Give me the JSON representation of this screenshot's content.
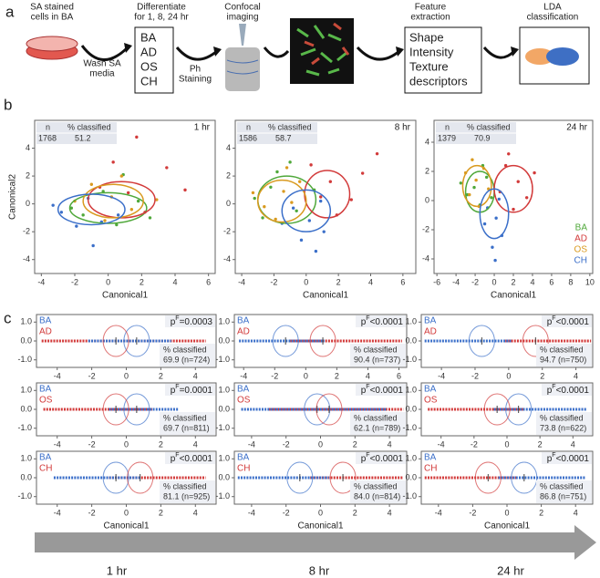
{
  "panel_a": {
    "label": "a",
    "dish_label": [
      "SA stained",
      "cells in BA"
    ],
    "wash": [
      "Wash SA",
      "media"
    ],
    "differentiate": [
      "Differentiate",
      "for 1, 8, 24 hr"
    ],
    "conditions": [
      "BA",
      "AD",
      "OS",
      "CH"
    ],
    "staining": [
      "Ph",
      "Staining"
    ],
    "imaging": [
      "Confocal",
      "imaging"
    ],
    "feature": [
      "Feature",
      "extraction"
    ],
    "descriptors": [
      "Shape",
      "Intensity",
      "Texture",
      "descriptors"
    ],
    "classification": [
      "LDA",
      "classification"
    ]
  },
  "panel_b_label": "b",
  "panel_c_label": "c",
  "timeline": {
    "labels": [
      "1 hr",
      "8 hr",
      "24 hr"
    ]
  },
  "chart_data": [
    {
      "type": "scatter",
      "time_label": "1 hr",
      "y_label": "Canonical2",
      "x_label": "Canonical1",
      "table": {
        "headers": [
          "n",
          "% classified"
        ],
        "values": [
          1768,
          51.2
        ]
      },
      "xlim": [
        -4.4,
        6.4
      ],
      "xticks": [
        -4,
        -2,
        0,
        2,
        4,
        6
      ],
      "ylim": [
        -5,
        6
      ],
      "yticks": [
        -4,
        -2,
        0,
        2,
        4
      ],
      "series": [
        {
          "color": "#4fa83a",
          "x": [
            -1.5,
            0.5,
            1.8,
            -0.3,
            2.5,
            -2.2,
            0.9
          ],
          "y": [
            -0.8,
            -1.5,
            0.2,
            0.9,
            -1.0,
            -0.3,
            2.1
          ],
          "ellipse": {
            "cx": 0,
            "cy": -0.3,
            "rx": 2.3,
            "ry": 1.1
          }
        },
        {
          "color": "#d23a3a",
          "x": [
            1.2,
            3.5,
            -0.5,
            2.2,
            4.6,
            0.3,
            1.7
          ],
          "y": [
            0.8,
            2.6,
            1.2,
            -0.6,
            1.0,
            3.0,
            4.8
          ],
          "ellipse": {
            "cx": 0.8,
            "cy": 0.3,
            "rx": 2,
            "ry": 1.3
          }
        },
        {
          "color": "#d99a1f",
          "x": [
            0.2,
            -1.0,
            1.4,
            2.9,
            -0.2,
            0.8,
            -2.0
          ],
          "y": [
            0.5,
            1.4,
            -0.4,
            0.3,
            -1.2,
            2.0,
            0.2
          ],
          "ellipse": {
            "cx": 0.3,
            "cy": 0.2,
            "rx": 1.8,
            "ry": 1.2
          }
        },
        {
          "color": "#3b6fc9",
          "x": [
            -2.8,
            -1.2,
            -0.4,
            -3.3,
            0.6,
            -1.9,
            -0.9
          ],
          "y": [
            -0.6,
            0.4,
            -1.3,
            -0.1,
            -0.8,
            -1.6,
            -3.0
          ],
          "ellipse": {
            "cx": -1,
            "cy": -0.4,
            "rx": 2,
            "ry": 1.1
          }
        }
      ]
    },
    {
      "type": "scatter",
      "time_label": "8 hr",
      "x_label": "Canonical1",
      "table": {
        "headers": [
          "n",
          "% classified"
        ],
        "values": [
          1586,
          58.7
        ]
      },
      "xlim": [
        -4.4,
        6.8
      ],
      "xticks": [
        -4,
        -2,
        0,
        2,
        4,
        6
      ],
      "ylim": [
        -5,
        6
      ],
      "yticks": [
        -4,
        -2,
        0,
        2,
        4
      ],
      "series": [
        {
          "color": "#4fa83a",
          "x": [
            -2.2,
            -0.6,
            -1.8,
            -3.2,
            0.5,
            -1.0,
            -2.7
          ],
          "y": [
            1.2,
            -0.5,
            2.3,
            0.4,
            1.0,
            3.0,
            -1.0
          ],
          "ellipse": {
            "cx": -1.2,
            "cy": 0.3,
            "rx": 1.8,
            "ry": 1.7
          }
        },
        {
          "color": "#d23a3a",
          "x": [
            1.5,
            2.8,
            0.3,
            1.9,
            3.5,
            0.9,
            4.4
          ],
          "y": [
            1.6,
            0.3,
            2.8,
            -0.8,
            2.2,
            0.5,
            3.6
          ],
          "ellipse": {
            "cx": 1.3,
            "cy": 0.7,
            "rx": 1.4,
            "ry": 1.7
          }
        },
        {
          "color": "#d99a1f",
          "x": [
            -1.4,
            -2.6,
            -0.4,
            -1.9,
            -3.3,
            -0.9,
            -1.2
          ],
          "y": [
            0.9,
            -0.2,
            1.6,
            -1.1,
            0.8,
            0.1,
            2.6
          ],
          "ellipse": {
            "cx": -1.5,
            "cy": 0.2,
            "rx": 1.5,
            "ry": 1.5
          }
        },
        {
          "color": "#3b6fc9",
          "x": [
            0.2,
            -0.8,
            1.1,
            -0.3,
            0.9,
            -1.5,
            0.6
          ],
          "y": [
            -1.2,
            -0.3,
            -2.0,
            -2.6,
            0.2,
            -1.4,
            -3.4
          ],
          "ellipse": {
            "cx": 0,
            "cy": -0.5,
            "rx": 1.5,
            "ry": 1.5
          }
        }
      ]
    },
    {
      "type": "scatter",
      "time_label": "24 hr",
      "x_label": "Canonical1",
      "table": {
        "headers": [
          "n",
          "% classified"
        ],
        "values": [
          1379,
          70.9
        ]
      },
      "xlim": [
        -6.3,
        10.3
      ],
      "xticks": [
        -6,
        -4,
        -2,
        0,
        2,
        4,
        6,
        8,
        10
      ],
      "ylim": [
        -5,
        5.5
      ],
      "yticks": [
        -4,
        -2,
        0,
        2,
        4
      ],
      "legend": "bottom-right",
      "series": [
        {
          "name": "BA",
          "color": "#4fa83a",
          "x": [
            -2.1,
            -0.8,
            -1.5,
            -2.8,
            -0.3,
            -1.2,
            -3.5
          ],
          "y": [
            0.9,
            1.6,
            -0.3,
            0.4,
            0.2,
            2.4,
            1.2
          ],
          "ellipse": {
            "cx": -1.5,
            "cy": 0.6,
            "rx": 1.5,
            "ry": 1.4
          }
        },
        {
          "name": "AD",
          "color": "#d23a3a",
          "x": [
            2.5,
            1.2,
            3.4,
            0.6,
            2.0,
            4.2,
            1.5
          ],
          "y": [
            1.3,
            2.4,
            0.2,
            0.6,
            -0.6,
            1.9,
            3.2
          ],
          "ellipse": {
            "cx": 2,
            "cy": 0.8,
            "rx": 2,
            "ry": 1.6
          }
        },
        {
          "name": "OS",
          "color": "#d99a1f",
          "x": [
            -1.9,
            -2.6,
            -1.1,
            -2.3,
            -0.6,
            -1.6,
            -3.0
          ],
          "y": [
            1.4,
            0.4,
            2.2,
            2.8,
            0.8,
            -0.4,
            1.9
          ],
          "ellipse": {
            "cx": -1.8,
            "cy": 1.0,
            "rx": 1.5,
            "ry": 1.4
          }
        },
        {
          "name": "CH",
          "color": "#3b6fc9",
          "x": [
            0.2,
            -0.7,
            0.8,
            -0.2,
            0.5,
            -1.0,
            0.1
          ],
          "y": [
            -1.2,
            -0.5,
            -2.4,
            -3.2,
            0.1,
            -1.6,
            -4.1
          ],
          "ellipse": {
            "cx": 0,
            "cy": -0.9,
            "rx": 1.5,
            "ry": 1.7
          }
        }
      ]
    },
    {
      "type": "strip",
      "xlim": [
        -5.2,
        5.2
      ],
      "xticks": [
        -4,
        -2,
        0,
        2,
        4
      ],
      "ylim": [
        -1.4,
        1.4
      ],
      "yticks": [
        {
          "value": -1,
          "label": "-1.0"
        },
        {
          "value": 0,
          "label": "0.0"
        },
        {
          "value": 1,
          "label": "1.0"
        }
      ],
      "stat": "p",
      "stat_sup": "F",
      "p_value": "=0.0003",
      "classified_label": "% classified",
      "classified_text": "69.9 (n=724)",
      "series": [
        {
          "name": "BA",
          "color": "#3b6fc9",
          "extent": [
            -2.2,
            2.6
          ],
          "mean": 0.6
        },
        {
          "name": "AD",
          "color": "#d23a3a",
          "extent": [
            -4.9,
            4.6
          ],
          "mean": -0.6
        }
      ]
    },
    {
      "type": "strip",
      "xlim": [
        -4.6,
        6.5
      ],
      "xticks": [
        -4,
        -2,
        0,
        2,
        4,
        6
      ],
      "ylim": [
        -1.4,
        1.4
      ],
      "yticks": [
        {
          "value": -1,
          "label": "-1.0"
        },
        {
          "value": 0,
          "label": "0.0"
        },
        {
          "value": 1,
          "label": "1.0"
        }
      ],
      "stat": "p",
      "stat_sup": "F",
      "p_value": "<0.0001",
      "classified_label": "% classified",
      "classified_text": "90.4 (n=737)",
      "series": [
        {
          "name": "BA",
          "color": "#3b6fc9",
          "extent": [
            -4.3,
            1.2
          ],
          "mean": -1.3
        },
        {
          "name": "AD",
          "color": "#d23a3a",
          "extent": [
            -1.0,
            6.2
          ],
          "mean": 1.1
        }
      ]
    },
    {
      "type": "strip",
      "xlim": [
        -5.2,
        5
      ],
      "xticks": [
        -4,
        -2,
        0,
        2,
        4
      ],
      "ylim": [
        -1.4,
        1.4
      ],
      "yticks": [
        {
          "value": -1,
          "label": "-1.0"
        },
        {
          "value": 0,
          "label": "0.0"
        },
        {
          "value": 1,
          "label": "1.0"
        }
      ],
      "stat": "p",
      "stat_sup": "F",
      "p_value": "<0.0001",
      "classified_label": "% classified",
      "classified_text": "94.7 (n=750)",
      "series": [
        {
          "name": "BA",
          "color": "#3b6fc9",
          "extent": [
            -5.0,
            0.2
          ],
          "mean": -1.6
        },
        {
          "name": "AD",
          "color": "#d23a3a",
          "extent": [
            -0.2,
            4.9
          ],
          "mean": 1.6
        }
      ]
    },
    {
      "type": "strip",
      "xlim": [
        -5.2,
        5.2
      ],
      "xticks": [
        -4,
        -2,
        0,
        2,
        4
      ],
      "ylim": [
        -1.4,
        1.4
      ],
      "yticks": [
        {
          "value": -1,
          "label": "-1.0"
        },
        {
          "value": 0,
          "label": "0.0"
        },
        {
          "value": 1,
          "label": "1.0"
        }
      ],
      "stat": "p",
      "stat_sup": "F",
      "p_value": "=0.0001",
      "classified_label": "% classified",
      "classified_text": "69.7 (n=811)",
      "series": [
        {
          "name": "BA",
          "color": "#3b6fc9",
          "extent": [
            -1.0,
            3.0
          ],
          "mean": 0.6
        },
        {
          "name": "OS",
          "color": "#d23a3a",
          "extent": [
            -4.8,
            1.5
          ],
          "mean": -0.6
        }
      ]
    },
    {
      "type": "strip",
      "xlim": [
        -5,
        5
      ],
      "xticks": [
        -4,
        -2,
        0,
        2,
        4
      ],
      "ylim": [
        -1.4,
        1.4
      ],
      "yticks": [
        {
          "value": -1,
          "label": "-1.0"
        },
        {
          "value": 0,
          "label": "0.0"
        },
        {
          "value": 1,
          "label": "1.0"
        }
      ],
      "stat": "p",
      "stat_sup": "F",
      "p_value": "<0.0001",
      "classified_label": "% classified",
      "classified_text": "62.1 (n=789)",
      "series": [
        {
          "name": "BA",
          "color": "#3b6fc9",
          "extent": [
            -4.6,
            3.8
          ],
          "mean": -0.2
        },
        {
          "name": "OS",
          "color": "#d23a3a",
          "extent": [
            -3.0,
            4.8
          ],
          "mean": 0.5
        }
      ]
    },
    {
      "type": "strip",
      "xlim": [
        -5.2,
        5.2
      ],
      "xticks": [
        -4,
        -2,
        0,
        2,
        4
      ],
      "ylim": [
        -1.4,
        1.4
      ],
      "yticks": [
        {
          "value": -1,
          "label": "-1.0"
        },
        {
          "value": 0,
          "label": "0.0"
        },
        {
          "value": 1,
          "label": "1.0"
        }
      ],
      "stat": "p",
      "stat_sup": "F",
      "p_value": "<0.0001",
      "classified_label": "% classified",
      "classified_text": "73.8 (n=622)",
      "series": [
        {
          "name": "BA",
          "color": "#3b6fc9",
          "extent": [
            -0.8,
            4.8
          ],
          "mean": 0.7
        },
        {
          "name": "OS",
          "color": "#d23a3a",
          "extent": [
            -4.8,
            1.0
          ],
          "mean": -0.6
        }
      ]
    },
    {
      "type": "strip",
      "x_label": "Canonical1",
      "xlim": [
        -5.2,
        5.2
      ],
      "xticks": [
        -4,
        -2,
        0,
        2,
        4
      ],
      "ylim": [
        -1.4,
        1.4
      ],
      "yticks": [
        {
          "value": -1,
          "label": "-1.0"
        },
        {
          "value": 0,
          "label": "0.0"
        },
        {
          "value": 1,
          "label": "1.0"
        }
      ],
      "stat": "p",
      "stat_sup": "F",
      "p_value": "<0.0001",
      "classified_label": "% classified",
      "classified_text": "81.1 (n=925)",
      "series": [
        {
          "name": "BA",
          "color": "#3b6fc9",
          "extent": [
            -4.2,
            0.8
          ],
          "mean": -0.6
        },
        {
          "name": "CH",
          "color": "#d23a3a",
          "extent": [
            -1.0,
            4.6
          ],
          "mean": 0.8
        }
      ]
    },
    {
      "type": "strip",
      "x_label": "Canonical1",
      "xlim": [
        -5,
        5
      ],
      "xticks": [
        -4,
        -2,
        0,
        2,
        4
      ],
      "ylim": [
        -1.4,
        1.4
      ],
      "yticks": [
        {
          "value": -1,
          "label": "-1.0"
        },
        {
          "value": 0,
          "label": "0.0"
        },
        {
          "value": 1,
          "label": "1.0"
        }
      ],
      "stat": "p",
      "stat_sup": "F",
      "p_value": "<0.0001",
      "classified_label": "% classified",
      "classified_text": "84.0 (n=814)",
      "series": [
        {
          "name": "BA",
          "color": "#3b6fc9",
          "extent": [
            -4.8,
            0.5
          ],
          "mean": -1.2
        },
        {
          "name": "CH",
          "color": "#d23a3a",
          "extent": [
            -0.6,
            4.8
          ],
          "mean": 1.3
        }
      ]
    },
    {
      "type": "strip",
      "x_label": "Canonical1",
      "xlim": [
        -5,
        5
      ],
      "xticks": [
        -4,
        -2,
        0,
        2,
        4
      ],
      "ylim": [
        -1.4,
        1.4
      ],
      "yticks": [
        {
          "value": -1,
          "label": "-1.0"
        },
        {
          "value": 0,
          "label": "0.0"
        },
        {
          "value": 1,
          "label": "1.0"
        }
      ],
      "stat": "p",
      "stat_sup": "F",
      "p_value": "<0.0001",
      "classified_label": "% classified",
      "classified_text": "86.8 (n=751)",
      "series": [
        {
          "name": "BA",
          "color": "#3b6fc9",
          "extent": [
            -0.5,
            4.6
          ],
          "mean": 1.0
        },
        {
          "name": "CH",
          "color": "#d23a3a",
          "extent": [
            -4.8,
            0.6
          ],
          "mean": -1.1
        }
      ]
    }
  ]
}
